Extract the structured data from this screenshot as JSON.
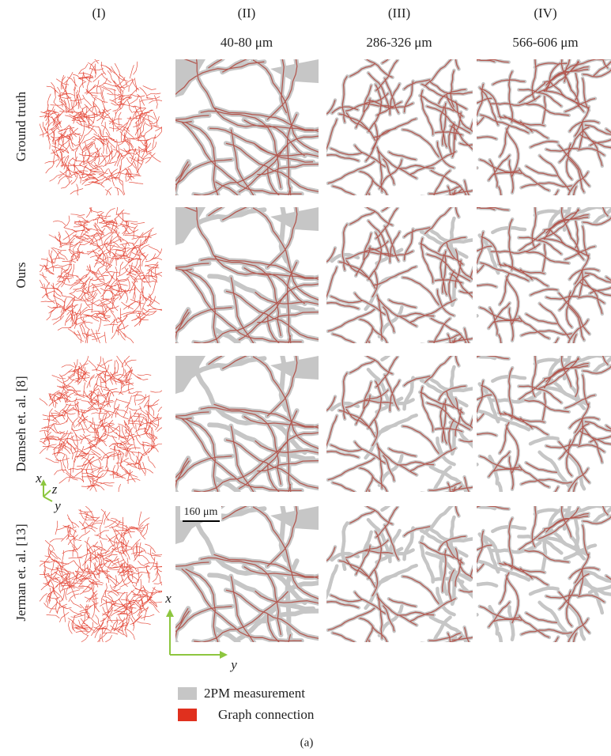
{
  "columns": [
    "(I)",
    "(II)",
    "(III)",
    "(IV)"
  ],
  "depths": [
    "40-80 μm",
    "286-326 μm",
    "566-606 μm"
  ],
  "rows": [
    "Ground truth",
    "Ours",
    "Damseh et. al. [8]",
    "Jerman et. al. [13]"
  ],
  "scale_bar": "160 μm",
  "axes": {
    "x": "x",
    "y": "y",
    "z": "z"
  },
  "legend": [
    {
      "label": "2PM measurement",
      "color": "#c6c6c6"
    },
    {
      "label": "Graph connection",
      "color": "#e0301e"
    }
  ],
  "caption": "(a)"
}
